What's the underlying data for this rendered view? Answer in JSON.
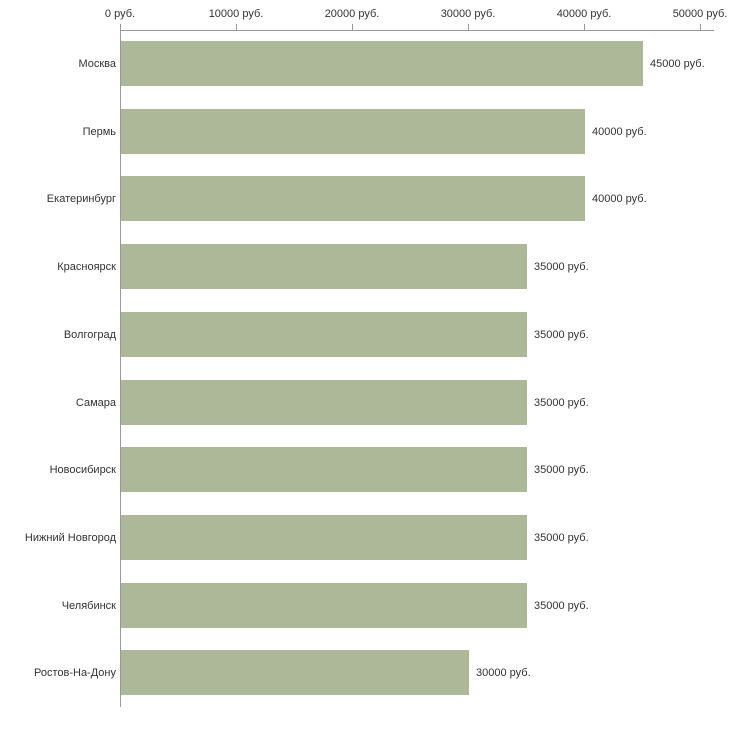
{
  "chart_data": {
    "type": "bar",
    "orientation": "horizontal",
    "title": "",
    "xlabel": "",
    "ylabel": "",
    "categories": [
      "Москва",
      "Пермь",
      "Екатеринбург",
      "Красноярск",
      "Волгоград",
      "Самара",
      "Новосибирск",
      "Нижний Новгород",
      "Челябинск",
      "Ростов-На-Дону"
    ],
    "values": [
      45000,
      40000,
      40000,
      35000,
      35000,
      35000,
      35000,
      35000,
      35000,
      30000
    ],
    "value_labels": [
      "45000 руб.",
      "40000 руб.",
      "40000 руб.",
      "35000 руб.",
      "35000 руб.",
      "35000 руб.",
      "35000 руб.",
      "35000 руб.",
      "35000 руб.",
      "30000 руб."
    ],
    "x_ticks": [
      0,
      10000,
      20000,
      30000,
      40000,
      50000
    ],
    "x_tick_labels": [
      "0 руб.",
      "10000 руб.",
      "20000 руб.",
      "30000 руб.",
      "40000 руб.",
      "50000 руб."
    ],
    "xlim": [
      0,
      50000
    ],
    "grid": false,
    "legend": false,
    "axis_position": "top",
    "bar_color": "#acb897",
    "axis_color": "#999999",
    "text_color": "#333333"
  }
}
